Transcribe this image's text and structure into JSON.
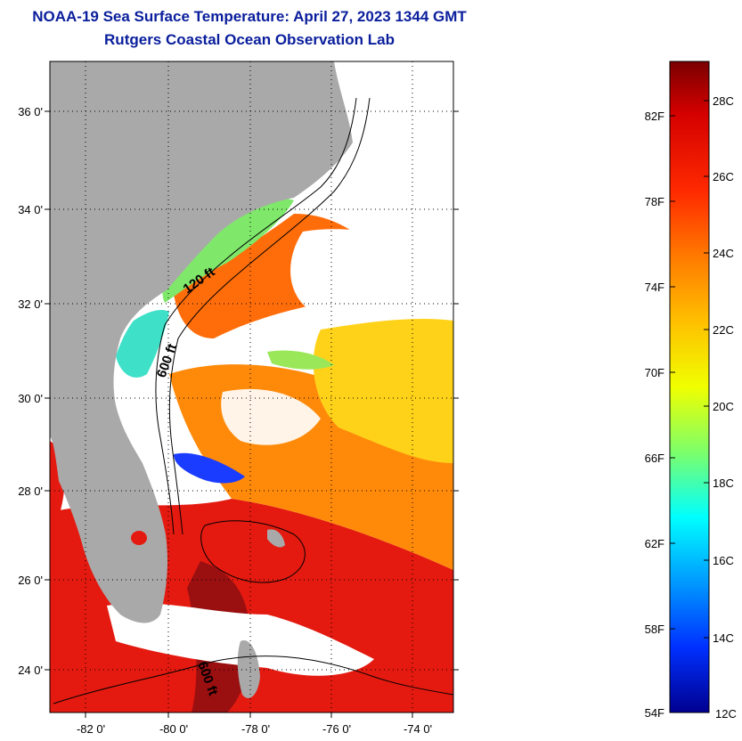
{
  "header": {
    "title": "NOAA-19 Sea Surface Temperature:  April 27, 2023 1344 GMT",
    "subtitle": "Rutgers Coastal Ocean Observation Lab"
  },
  "map": {
    "lat_labels": [
      "36 0'",
      "34 0'",
      "32 0'",
      "30 0'",
      "28 0'",
      "26 0'",
      "24 0'"
    ],
    "lon_labels": [
      "-82 0'",
      "-80 0'",
      "-78 0'",
      "-76 0'",
      "-74 0'"
    ],
    "contour_labels": [
      "120 ft",
      "600 ft",
      "600 ft"
    ],
    "land_color": "#a9a9a9",
    "cloud_color": "#ffffff"
  },
  "colorbar": {
    "fahrenheit_labels": [
      "82F",
      "78F",
      "74F",
      "70F",
      "66F",
      "62F",
      "58F",
      "54F"
    ],
    "celsius_labels": [
      "28C",
      "26C",
      "24C",
      "22C",
      "20C",
      "18C",
      "16C",
      "14C",
      "12C"
    ],
    "colors": [
      "#7a0000",
      "#d40000",
      "#ff2a00",
      "#ff7a00",
      "#ffc000",
      "#f0ff00",
      "#7dff6a",
      "#00ffff",
      "#0099ff",
      "#0030ff",
      "#00008f"
    ]
  }
}
